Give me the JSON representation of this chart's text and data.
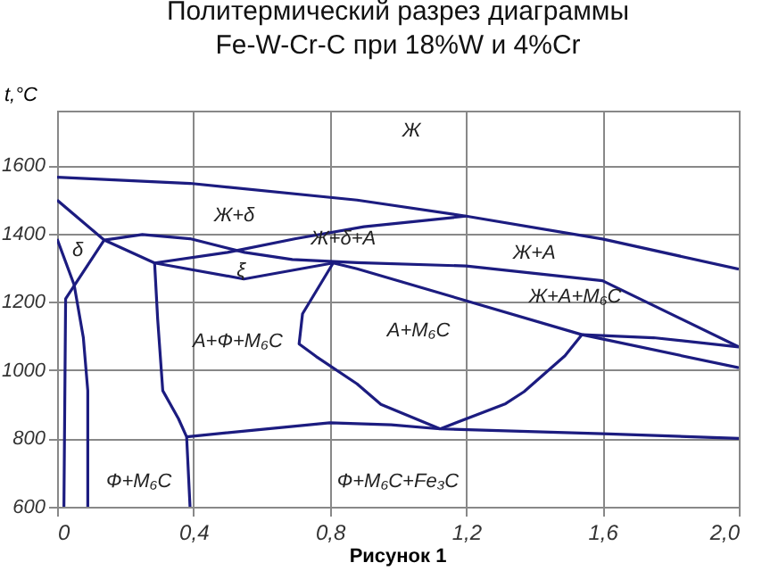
{
  "chart_data": {
    "type": "line",
    "title": "Политермический разрез диаграммы\nFe-W-Cr-C при 18%W и 4%Cr",
    "ylabel": "t,°C",
    "xlim": [
      0,
      2.0
    ],
    "ylim": [
      600,
      1760
    ],
    "xticks": [
      {
        "value": 0,
        "label": "0"
      },
      {
        "value": 0.4,
        "label": "0,4"
      },
      {
        "value": 0.8,
        "label": "0,8"
      },
      {
        "value": 1.2,
        "label": "1,2"
      },
      {
        "value": 1.6,
        "label": "1,6"
      },
      {
        "value": 2.0,
        "label": "2,0"
      }
    ],
    "yticks": [
      600,
      800,
      1000,
      1200,
      1400,
      1600
    ],
    "grid": true,
    "marker": "none",
    "line_style": "solid",
    "series": [
      {
        "color": "#1c1c80",
        "x": [
          0,
          0.39,
          0.88,
          1.2,
          1.6,
          2.0
        ],
        "values": [
          1565,
          1547,
          1498,
          1451,
          1384,
          1296
        ]
      },
      {
        "color": "#1c1c80",
        "x": [
          0,
          0.138,
          0.286,
          0.548,
          0.81,
          0.88,
          1.54,
          2.0
        ],
        "values": [
          1498,
          1381,
          1314,
          1267,
          1314,
          1297,
          1104,
          1007
        ]
      },
      {
        "color": "#1c1c80",
        "x": [
          0.138,
          0.25,
          0.39,
          0.55,
          0.69,
          0.88,
          1.2,
          1.6,
          2.0
        ],
        "values": [
          1381,
          1397,
          1385,
          1345,
          1324,
          1315,
          1305,
          1262,
          1068
        ]
      },
      {
        "color": "#1c1c80",
        "x": [
          0.286,
          0.5,
          0.7,
          0.9,
          1.2
        ],
        "values": [
          1314,
          1345,
          1385,
          1420,
          1451
        ]
      },
      {
        "color": "#1c1c80",
        "x": [
          1.54,
          1.75,
          2.0
        ],
        "values": [
          1104,
          1095,
          1068
        ]
      },
      {
        "color": "#1c1c80",
        "x": [
          1.54,
          1.49,
          1.37,
          1.316,
          1.124
        ],
        "values": [
          1104,
          1042,
          937,
          902,
          828
        ]
      },
      {
        "color": "#1c1c80",
        "x": [
          0.81,
          0.72,
          0.71,
          0.76,
          0.88,
          0.95,
          1.124
        ],
        "values": [
          1314,
          1165,
          1077,
          1040,
          960,
          900,
          828
        ]
      },
      {
        "color": "#1c1c80",
        "x": [
          0.38,
          0.8,
          0.98,
          1.124,
          1.6,
          2.0
        ],
        "values": [
          805,
          846,
          840,
          828,
          814,
          800
        ]
      },
      {
        "color": "#1c1c80",
        "x": [
          0.286,
          0.295,
          0.31,
          0.356,
          0.38,
          0.39
        ],
        "values": [
          1314,
          1150,
          940,
          858,
          805,
          600
        ]
      },
      {
        "color": "#1c1c80",
        "x": [
          0,
          0.05,
          0.077,
          0.09,
          0.09
        ],
        "values": [
          1384,
          1250,
          1095,
          940,
          600
        ]
      },
      {
        "color": "#1c1c80",
        "x": [
          0.138,
          0.025,
          0.02
        ],
        "values": [
          1381,
          1209,
          600
        ]
      }
    ],
    "annotations": [
      "Ж",
      "Ж+δ",
      "δ",
      "Ж+δ+А",
      "ξ",
      "Ж+А",
      "Ж+А+M₆C",
      "А+Ф+M₆C",
      "А+M₆C",
      "Ф+M₆C",
      "Ф+M₆C+Fe₃C",
      "Рисунок 1"
    ]
  }
}
